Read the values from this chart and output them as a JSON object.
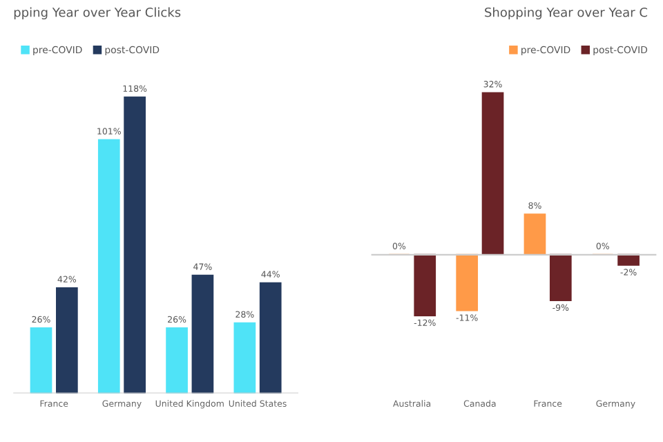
{
  "chart_data": [
    {
      "type": "bar",
      "title": "pping Year over Year Clicks",
      "categories": [
        "France",
        "Germany",
        "United Kingdom",
        "United States"
      ],
      "legend": "top left",
      "grid": false,
      "series": [
        {
          "name": "pre-COVID",
          "color": "#4fe3f7",
          "values": [
            26,
            101,
            26,
            28
          ],
          "value_labels": [
            "26%",
            "101%",
            "26%",
            "28%"
          ]
        },
        {
          "name": "post-COVID",
          "color": "#243a5e",
          "values": [
            42,
            118,
            47,
            44
          ],
          "value_labels": [
            "42%",
            "118%",
            "47%",
            "44%"
          ]
        }
      ]
    },
    {
      "type": "bar",
      "title": "Shopping Year over Year C",
      "categories": [
        "Australia",
        "Canada",
        "France",
        "Germany"
      ],
      "legend": "top right",
      "grid": false,
      "series": [
        {
          "name": "pre-COVID",
          "color": "#ff9a48",
          "values": [
            0,
            -11,
            8,
            0
          ],
          "value_labels": [
            "0%",
            "-11%",
            "8%",
            "0%"
          ]
        },
        {
          "name": "post-COVID",
          "color": "#6b2327",
          "values": [
            -12,
            32,
            -9,
            -2
          ],
          "value_labels": [
            "-12%",
            "32%",
            "-9%",
            "-2%"
          ]
        }
      ]
    }
  ]
}
